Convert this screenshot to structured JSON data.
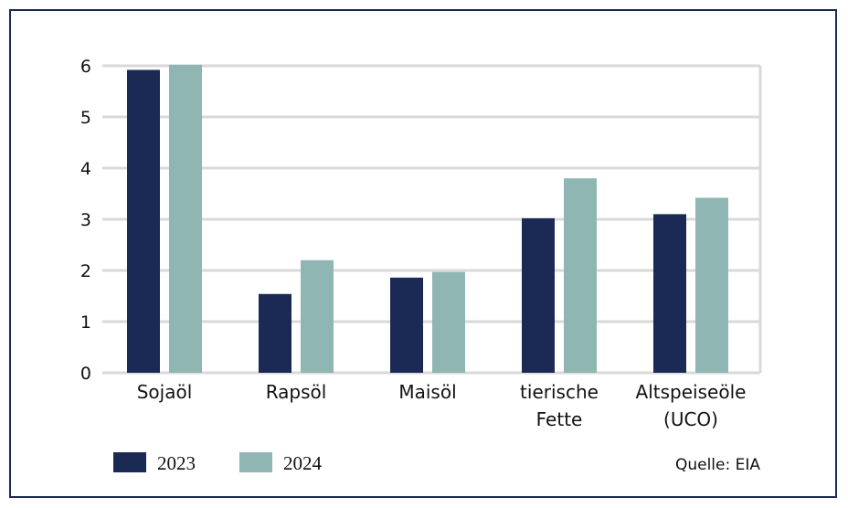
{
  "chart_data": {
    "type": "bar",
    "categories": [
      [
        "Sojaöl"
      ],
      [
        "Rapsöl"
      ],
      [
        "Maisöl"
      ],
      [
        "tierische",
        "Fette"
      ],
      [
        "Altspeiseöle",
        "(UCO)"
      ]
    ],
    "series": [
      {
        "name": "2023",
        "color": "#1b2a55",
        "values": [
          5.92,
          1.54,
          1.86,
          3.02,
          3.1
        ]
      },
      {
        "name": "2024",
        "color": "#8fb6b3",
        "values": [
          6.02,
          2.2,
          1.97,
          3.8,
          3.42
        ]
      }
    ],
    "y_ticks": [
      0,
      1,
      2,
      3,
      4,
      5,
      6
    ],
    "ylim": [
      0,
      6
    ],
    "grid": true,
    "legend_position": "bottom-left",
    "source": "Quelle: EIA"
  }
}
